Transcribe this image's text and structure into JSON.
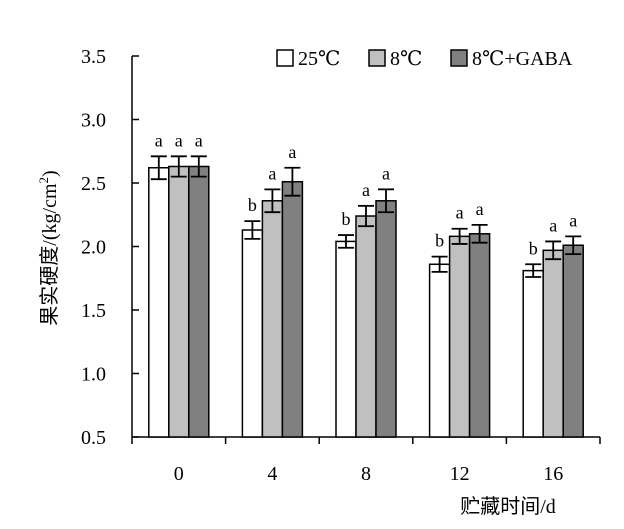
{
  "chart_data": {
    "type": "bar",
    "title": "",
    "xlabel": "贮藏时间/d",
    "ylabel": "果实硬度/(kg/cm²)",
    "ylabel_parts": {
      "main": "果实硬度/(kg/cm",
      "sup": "2",
      "end": ")"
    },
    "ylim": [
      0.5,
      3.5
    ],
    "yticks": [
      "0.5",
      "1.0",
      "1.5",
      "2.0",
      "2.5",
      "3.0",
      "3.5"
    ],
    "categories": [
      "0",
      "4",
      "8",
      "12",
      "16"
    ],
    "legend_position": "top-right",
    "grid": false,
    "series": [
      {
        "name": "25℃",
        "color": "#ffffff",
        "values": [
          2.62,
          2.13,
          2.04,
          1.86,
          1.81
        ],
        "errors": [
          0.09,
          0.07,
          0.05,
          0.06,
          0.05
        ],
        "sig": [
          "a",
          "b",
          "b",
          "b",
          "b"
        ]
      },
      {
        "name": "8℃",
        "color": "#c0c0c0",
        "values": [
          2.63,
          2.36,
          2.24,
          2.08,
          1.97
        ],
        "errors": [
          0.08,
          0.09,
          0.08,
          0.06,
          0.07
        ],
        "sig": [
          "a",
          "a",
          "a",
          "a",
          "a"
        ]
      },
      {
        "name": "8℃+GABA",
        "color": "#808080",
        "values": [
          2.63,
          2.51,
          2.36,
          2.1,
          2.01
        ],
        "errors": [
          0.08,
          0.11,
          0.09,
          0.07,
          0.07
        ],
        "sig": [
          "a",
          "a",
          "a",
          "a",
          "a"
        ]
      }
    ]
  }
}
